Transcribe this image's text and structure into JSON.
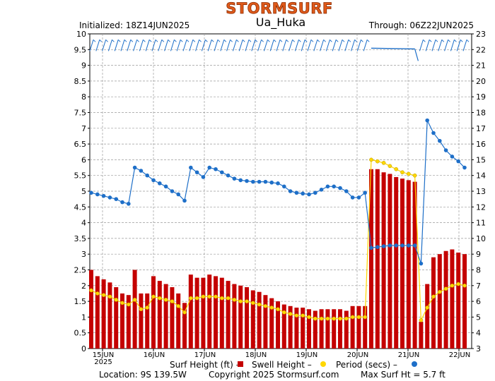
{
  "header": {
    "brand": "STORMSURF",
    "initialized": "Initialized: 18Z14JUN2025",
    "spot": "Ua_Huka",
    "through": "Through: 06Z22JUN2025"
  },
  "footer": {
    "legend_surf": "Surf Height (ft) –",
    "legend_swell": "Swell Height –",
    "legend_period": "Period (secs) –",
    "location": "Location: 9S 139.5W",
    "copyright": "Copyright 2025 Stormsurf.com",
    "max_surf": "Max Surf Ht = 5.7 ft"
  },
  "colors": {
    "surf_bar": "#c40000",
    "swell": "#ffd700",
    "period": "#1e6fc8",
    "wind": "#1e6fc8",
    "grid": "#9a9a9a",
    "brand": "#e05a1a"
  },
  "chart_data": {
    "type": "bar",
    "x_tick_labels": [
      "15JUN",
      "16JUN",
      "17JUN",
      "18JUN",
      "19JUN",
      "20JUN",
      "21JUN",
      "22JUN"
    ],
    "x_year_label": "2025",
    "left_axis": {
      "unit": "ft",
      "ylim": [
        0,
        10
      ],
      "ticks": [
        "0",
        "0.5",
        "1",
        "1.5",
        "2",
        "2.5",
        "3",
        "3.5",
        "4",
        "4.5",
        "5",
        "5.5",
        "6",
        "6.5",
        "7",
        "7.5",
        "8",
        "8.5",
        "9",
        "9.5",
        "10"
      ]
    },
    "right_axis": {
      "unit": "secs",
      "ylim": [
        3,
        23
      ],
      "ticks": [
        "3",
        "4",
        "5",
        "6",
        "7",
        "8",
        "9",
        "10",
        "11",
        "12",
        "13",
        "14",
        "15",
        "16",
        "17",
        "18",
        "19",
        "20",
        "21",
        "22",
        "23"
      ]
    },
    "grid": true,
    "series": [
      {
        "name": "Surf Height (ft)",
        "type": "bar",
        "values": [
          2.5,
          2.3,
          2.2,
          2.1,
          1.95,
          1.75,
          1.7,
          2.5,
          1.75,
          1.75,
          2.3,
          2.15,
          2.05,
          1.95,
          1.75,
          1.45,
          2.35,
          2.25,
          2.25,
          2.35,
          2.3,
          2.25,
          2.15,
          2.05,
          2.0,
          1.95,
          1.85,
          1.8,
          1.7,
          1.6,
          1.5,
          1.4,
          1.35,
          1.3,
          1.3,
          1.25,
          1.2,
          1.25,
          1.25,
          1.25,
          1.25,
          1.2,
          1.35,
          1.35,
          1.35,
          5.7,
          5.7,
          5.6,
          5.55,
          5.45,
          5.4,
          5.35,
          5.3,
          0.85,
          2.05,
          2.9,
          3.0,
          3.1,
          3.15,
          3.05,
          3.0
        ]
      },
      {
        "name": "Swell Height",
        "type": "line",
        "values": [
          1.85,
          1.75,
          1.7,
          1.65,
          1.55,
          1.45,
          1.4,
          1.55,
          1.25,
          1.3,
          1.65,
          1.6,
          1.55,
          1.5,
          1.35,
          1.15,
          1.6,
          1.6,
          1.65,
          1.65,
          1.65,
          1.6,
          1.6,
          1.55,
          1.5,
          1.5,
          1.45,
          1.4,
          1.35,
          1.3,
          1.25,
          1.15,
          1.1,
          1.05,
          1.05,
          1.0,
          0.95,
          0.95,
          0.95,
          0.95,
          0.95,
          0.95,
          1.0,
          1.0,
          1.0,
          6.0,
          5.95,
          5.9,
          5.8,
          5.7,
          5.6,
          5.55,
          5.5,
          0.9,
          1.3,
          1.65,
          1.8,
          1.9,
          2.0,
          2.05,
          2.0
        ]
      },
      {
        "name": "Period (secs)",
        "type": "line",
        "axis": "right",
        "values": [
          12.9,
          12.8,
          12.7,
          12.6,
          12.5,
          12.3,
          12.2,
          14.5,
          14.3,
          14.0,
          13.7,
          13.5,
          13.3,
          13.0,
          12.8,
          12.4,
          14.5,
          14.2,
          13.9,
          14.5,
          14.4,
          14.2,
          14.0,
          13.8,
          13.7,
          13.65,
          13.6,
          13.6,
          13.6,
          13.55,
          13.5,
          13.3,
          13.0,
          12.9,
          12.85,
          12.8,
          12.9,
          13.1,
          13.3,
          13.3,
          13.2,
          13.0,
          12.6,
          12.6,
          12.9,
          9.4,
          9.45,
          9.5,
          9.55,
          9.55,
          9.55,
          9.55,
          9.55,
          8.4,
          17.5,
          16.7,
          16.2,
          15.6,
          15.2,
          14.9,
          14.5
        ]
      }
    ],
    "wind": {
      "hidden_steps": [
        45,
        46,
        47,
        48,
        49,
        50,
        51,
        52
      ]
    }
  }
}
